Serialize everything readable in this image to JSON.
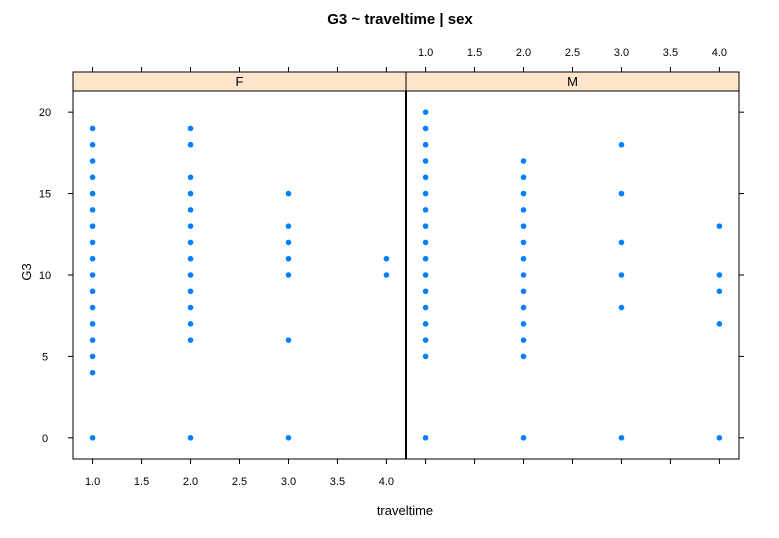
{
  "chart_data": {
    "type": "scatter",
    "title": "G3 ~ traveltime | sex",
    "xlabel": "traveltime",
    "ylabel": "G3",
    "xlim": [
      0.8,
      4.2
    ],
    "ylim": [
      -1.3,
      21.3
    ],
    "x_ticks": [
      1.0,
      1.5,
      2.0,
      2.5,
      3.0,
      3.5,
      4.0
    ],
    "x_tick_labels": [
      "1.0",
      "1.5",
      "2.0",
      "2.5",
      "3.0",
      "3.5",
      "4.0"
    ],
    "y_ticks": [
      0,
      5,
      10,
      15,
      20
    ],
    "y_tick_labels": [
      "0",
      "5",
      "10",
      "15",
      "20"
    ],
    "point_color": "#0080ff",
    "strip_color": "#ffe5cc",
    "panels": [
      {
        "name": "F",
        "points": [
          {
            "x": 1,
            "y": [
              0,
              4,
              5,
              6,
              7,
              8,
              9,
              10,
              11,
              12,
              13,
              14,
              15,
              16,
              17,
              18,
              19
            ]
          },
          {
            "x": 2,
            "y": [
              0,
              6,
              7,
              8,
              9,
              10,
              11,
              12,
              13,
              14,
              15,
              16,
              18,
              19
            ]
          },
          {
            "x": 3,
            "y": [
              0,
              6,
              10,
              11,
              12,
              13,
              15
            ]
          },
          {
            "x": 4,
            "y": [
              10,
              11
            ]
          }
        ]
      },
      {
        "name": "M",
        "points": [
          {
            "x": 1,
            "y": [
              0,
              5,
              6,
              7,
              8,
              9,
              10,
              11,
              12,
              13,
              14,
              15,
              16,
              17,
              18,
              19,
              20
            ]
          },
          {
            "x": 2,
            "y": [
              0,
              5,
              6,
              7,
              8,
              9,
              10,
              11,
              12,
              13,
              14,
              15,
              16,
              17
            ]
          },
          {
            "x": 3,
            "y": [
              0,
              8,
              10,
              12,
              15,
              18
            ]
          },
          {
            "x": 4,
            "y": [
              0,
              7,
              9,
              10,
              13
            ]
          }
        ]
      }
    ]
  }
}
